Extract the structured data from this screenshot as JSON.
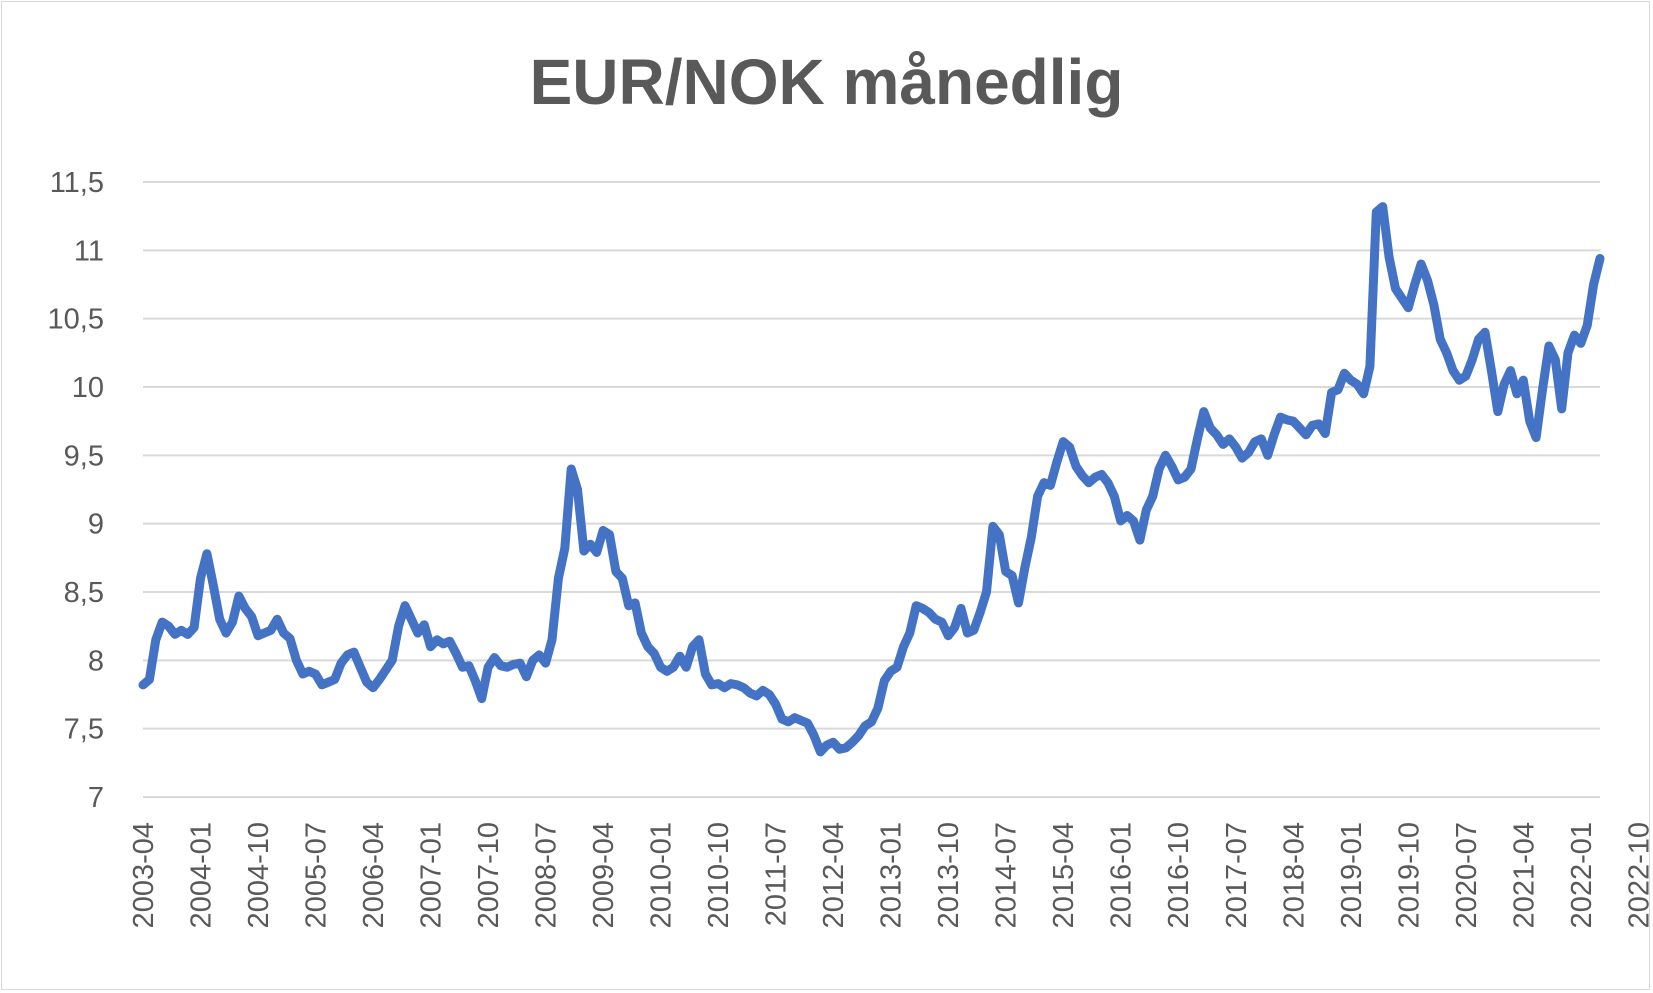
{
  "chart_data": {
    "type": "line",
    "title": "EUR/NOK månedlig",
    "xlabel": "",
    "ylabel": "",
    "ylim": [
      7,
      11.5
    ],
    "yticks": [
      "7",
      "7,5",
      "8",
      "8,5",
      "9",
      "9,5",
      "10",
      "10,5",
      "11",
      "11,5"
    ],
    "xtick_labels": [
      "2003-04",
      "2004-01",
      "2004-10",
      "2005-07",
      "2006-04",
      "2007-01",
      "2007-10",
      "2008-07",
      "2009-04",
      "2010-01",
      "2010-10",
      "2011-07",
      "2012-04",
      "2013-01",
      "2013-10",
      "2014-07",
      "2015-04",
      "2016-01",
      "2016-10",
      "2017-07",
      "2018-04",
      "2019-01",
      "2019-10",
      "2020-07",
      "2021-04",
      "2022-01",
      "2022-10"
    ],
    "grid": true,
    "legend": "none",
    "line_color": "#4472c4",
    "series": [
      {
        "start": "2003-04",
        "values": [
          7.82,
          7.86,
          8.15,
          8.28,
          8.25,
          8.19,
          8.22,
          8.19,
          8.24,
          8.6,
          8.78,
          8.55,
          8.3,
          8.2,
          8.28,
          8.47,
          8.38,
          8.32,
          8.18,
          8.2,
          8.22,
          8.3,
          8.2,
          8.16,
          8.0,
          7.9,
          7.92,
          7.9,
          7.82,
          7.84,
          7.86,
          7.98,
          8.04,
          8.06,
          7.95,
          7.84,
          7.8,
          7.86,
          7.93,
          8.0,
          8.25,
          8.4,
          8.3,
          8.2,
          8.26,
          8.1,
          8.15,
          8.12,
          8.14,
          8.05,
          7.95,
          7.96,
          7.85,
          7.72,
          7.95,
          8.02,
          7.96,
          7.95,
          7.97,
          7.98,
          7.88,
          8.0,
          8.04,
          7.98,
          8.15,
          8.6,
          8.82,
          9.4,
          9.25,
          8.8,
          8.85,
          8.79,
          8.95,
          8.92,
          8.65,
          8.6,
          8.4,
          8.42,
          8.2,
          8.1,
          8.05,
          7.95,
          7.92,
          7.95,
          8.03,
          7.95,
          8.1,
          8.15,
          7.9,
          7.82,
          7.83,
          7.8,
          7.83,
          7.82,
          7.8,
          7.76,
          7.74,
          7.78,
          7.75,
          7.68,
          7.57,
          7.55,
          7.58,
          7.56,
          7.54,
          7.45,
          7.33,
          7.38,
          7.4,
          7.35,
          7.36,
          7.4,
          7.45,
          7.52,
          7.55,
          7.65,
          7.85,
          7.92,
          7.95,
          8.1,
          8.2,
          8.4,
          8.38,
          8.35,
          8.3,
          8.28,
          8.18,
          8.24,
          8.38,
          8.2,
          8.22,
          8.35,
          8.5,
          8.98,
          8.92,
          8.65,
          8.62,
          8.42,
          8.68,
          8.9,
          9.2,
          9.3,
          9.28,
          9.45,
          9.6,
          9.56,
          9.42,
          9.35,
          9.3,
          9.34,
          9.36,
          9.3,
          9.2,
          9.02,
          9.06,
          9.02,
          8.88,
          9.1,
          9.2,
          9.4,
          9.5,
          9.42,
          9.32,
          9.34,
          9.4,
          9.62,
          9.82,
          9.7,
          9.65,
          9.58,
          9.62,
          9.56,
          9.48,
          9.52,
          9.6,
          9.62,
          9.5,
          9.65,
          9.78,
          9.76,
          9.75,
          9.7,
          9.65,
          9.72,
          9.73,
          9.66,
          9.96,
          9.98,
          10.1,
          10.05,
          10.02,
          9.95,
          10.15,
          11.28,
          11.32,
          10.95,
          10.72,
          10.65,
          10.58,
          10.75,
          10.9,
          10.78,
          10.6,
          10.35,
          10.25,
          10.12,
          10.05,
          10.08,
          10.2,
          10.35,
          10.4,
          10.12,
          9.82,
          10.02,
          10.12,
          9.95,
          10.05,
          9.75,
          9.63,
          9.98,
          10.3,
          10.2,
          9.84,
          10.25,
          10.38,
          10.32,
          10.45,
          10.75,
          10.94
        ]
      }
    ]
  }
}
